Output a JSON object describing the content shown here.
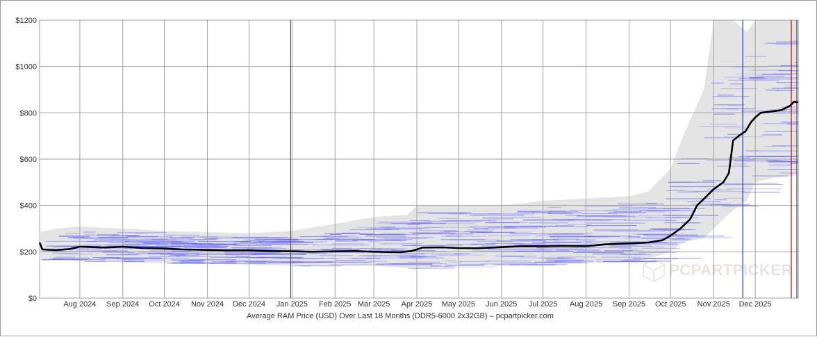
{
  "chart_data": {
    "type": "line",
    "title": "",
    "caption": "Average RAM Price (USD) Over Last 18 Months (DDR5-6000 2x32GB) – pcpartpicker.com",
    "x_range": [
      "2024-07-03",
      "2026-01-01"
    ],
    "ylim": [
      0,
      1200
    ],
    "y_ticks": [
      {
        "value": 0,
        "label": "$0"
      },
      {
        "value": 200,
        "label": "$200"
      },
      {
        "value": 400,
        "label": "$400"
      },
      {
        "value": 600,
        "label": "$600"
      },
      {
        "value": 800,
        "label": "$800"
      },
      {
        "value": 1000,
        "label": "$1000"
      },
      {
        "value": 1200,
        "label": "$1200"
      }
    ],
    "x_ticks": [
      {
        "date": "2024-08-01",
        "label": "Aug 2024"
      },
      {
        "date": "2024-09-01",
        "label": "Sep 2024"
      },
      {
        "date": "2024-10-01",
        "label": "Oct 2024"
      },
      {
        "date": "2024-11-01",
        "label": "Nov 2024"
      },
      {
        "date": "2024-12-01",
        "label": "Dec 2024"
      },
      {
        "date": "2025-01-01",
        "label": "Jan 2025"
      },
      {
        "date": "2025-02-01",
        "label": "Feb 2025"
      },
      {
        "date": "2025-03-01",
        "label": "Mar 2025"
      },
      {
        "date": "2025-04-01",
        "label": "Apr 2025"
      },
      {
        "date": "2025-05-01",
        "label": "May 2025"
      },
      {
        "date": "2025-06-01",
        "label": "Jun 2025"
      },
      {
        "date": "2025-07-01",
        "label": "Jul 2025"
      },
      {
        "date": "2025-08-01",
        "label": "Aug 2025"
      },
      {
        "date": "2025-09-01",
        "label": "Sep 2025"
      },
      {
        "date": "2025-10-01",
        "label": "Oct 2025"
      },
      {
        "date": "2025-11-01",
        "label": "Nov 2025"
      },
      {
        "date": "2025-12-01",
        "label": "Dec 2025"
      }
    ],
    "grid": true,
    "series": [
      {
        "role": "average",
        "color": "#000000",
        "points": [
          [
            "2024-07-03",
            240
          ],
          [
            "2024-07-05",
            210
          ],
          [
            "2024-07-15",
            207
          ],
          [
            "2024-07-25",
            212
          ],
          [
            "2024-08-01",
            222
          ],
          [
            "2024-08-20",
            218
          ],
          [
            "2024-09-01",
            222
          ],
          [
            "2024-09-15",
            216
          ],
          [
            "2024-10-01",
            214
          ],
          [
            "2024-10-15",
            210
          ],
          [
            "2024-11-01",
            208
          ],
          [
            "2024-11-15",
            206
          ],
          [
            "2024-12-01",
            206
          ],
          [
            "2024-12-15",
            203
          ],
          [
            "2025-01-01",
            202
          ],
          [
            "2025-01-15",
            200
          ],
          [
            "2025-02-01",
            202
          ],
          [
            "2025-02-15",
            203
          ],
          [
            "2025-03-01",
            200
          ],
          [
            "2025-03-20",
            198
          ],
          [
            "2025-03-28",
            203
          ],
          [
            "2025-04-01",
            210
          ],
          [
            "2025-04-05",
            218
          ],
          [
            "2025-04-20",
            219
          ],
          [
            "2025-05-01",
            216
          ],
          [
            "2025-05-15",
            215
          ],
          [
            "2025-06-01",
            220
          ],
          [
            "2025-06-15",
            224
          ],
          [
            "2025-07-01",
            224
          ],
          [
            "2025-07-15",
            226
          ],
          [
            "2025-08-01",
            224
          ],
          [
            "2025-08-15",
            232
          ],
          [
            "2025-09-01",
            236
          ],
          [
            "2025-09-15",
            240
          ],
          [
            "2025-09-25",
            250
          ],
          [
            "2025-10-01",
            270
          ],
          [
            "2025-10-08",
            300
          ],
          [
            "2025-10-15",
            340
          ],
          [
            "2025-10-20",
            400
          ],
          [
            "2025-10-27",
            440
          ],
          [
            "2025-11-01",
            470
          ],
          [
            "2025-11-08",
            500
          ],
          [
            "2025-11-12",
            540
          ],
          [
            "2025-11-15",
            680
          ],
          [
            "2025-11-19",
            700
          ],
          [
            "2025-11-24",
            720
          ],
          [
            "2025-11-28",
            760
          ],
          [
            "2025-12-01",
            780
          ],
          [
            "2025-12-05",
            800
          ],
          [
            "2025-12-12",
            805
          ],
          [
            "2025-12-20",
            812
          ],
          [
            "2025-12-26",
            830
          ],
          [
            "2025-12-29",
            848
          ],
          [
            "2026-01-01",
            845
          ]
        ]
      },
      {
        "role": "price-range-band",
        "color": "#e4e4e4",
        "points": [
          [
            "2024-07-03",
            160,
            285
          ],
          [
            "2024-07-15",
            165,
            300
          ],
          [
            "2024-08-01",
            160,
            310
          ],
          [
            "2024-09-01",
            155,
            300
          ],
          [
            "2024-10-01",
            150,
            290
          ],
          [
            "2024-11-01",
            148,
            285
          ],
          [
            "2024-12-01",
            145,
            280
          ],
          [
            "2025-01-01",
            140,
            290
          ],
          [
            "2025-02-01",
            138,
            320
          ],
          [
            "2025-03-01",
            140,
            350
          ],
          [
            "2025-03-25",
            130,
            360
          ],
          [
            "2025-04-01",
            125,
            400
          ],
          [
            "2025-05-01",
            140,
            400
          ],
          [
            "2025-06-01",
            140,
            400
          ],
          [
            "2025-07-01",
            145,
            420
          ],
          [
            "2025-08-01",
            150,
            430
          ],
          [
            "2025-09-01",
            160,
            440
          ],
          [
            "2025-09-15",
            170,
            460
          ],
          [
            "2025-10-01",
            200,
            560
          ],
          [
            "2025-10-10",
            240,
            700
          ],
          [
            "2025-10-25",
            260,
            900
          ],
          [
            "2025-11-01",
            300,
            1200
          ],
          [
            "2025-11-15",
            380,
            1200
          ],
          [
            "2025-11-25",
            420,
            1150
          ],
          [
            "2025-12-01",
            500,
            1200
          ],
          [
            "2025-12-15",
            520,
            1200
          ],
          [
            "2026-01-01",
            530,
            1200
          ]
        ]
      },
      {
        "role": "retailer-listings",
        "color": "#6464ff"
      }
    ],
    "markers": [
      {
        "date": "2024-12-31",
        "color": "#555555"
      },
      {
        "date": "2025-11-22",
        "color": "#3333aa"
      },
      {
        "date": "2025-12-27",
        "color": "#cc0000"
      },
      {
        "date": "2025-12-31",
        "color": "#444444"
      }
    ],
    "watermark": {
      "part1": "PC",
      "part2": "PART",
      "part3": "PICKER"
    }
  }
}
